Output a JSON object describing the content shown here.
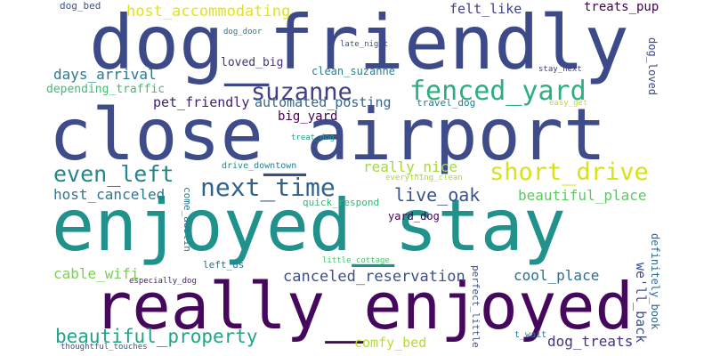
{
  "words": [
    {
      "text": "dog_friendly",
      "color": "#3d4a8a"
    },
    {
      "text": "close_airport",
      "color": "#3e4c8a"
    },
    {
      "text": "enjoyed_stay",
      "color": "#21918c"
    },
    {
      "text": "really_enjoyed",
      "color": "#46085c"
    },
    {
      "text": "suzanne",
      "color": "#433e85"
    },
    {
      "text": "fenced_yard",
      "color": "#2ab07f"
    },
    {
      "text": "next_time",
      "color": "#33638d"
    },
    {
      "text": "short_drive",
      "color": "#d8e219"
    },
    {
      "text": "even_left",
      "color": "#25858e"
    },
    {
      "text": "live_oak",
      "color": "#3b528b"
    },
    {
      "text": "beautiful_property",
      "color": "#20a386"
    },
    {
      "text": "canceled_reservation",
      "color": "#3b518b"
    },
    {
      "text": "host_accommodating",
      "color": "#e3e418"
    },
    {
      "text": "days_arrival",
      "color": "#2a788e"
    },
    {
      "text": "pet_friendly",
      "color": "#3f1f6f"
    },
    {
      "text": "automated_posting",
      "color": "#31688e"
    },
    {
      "text": "really_nice",
      "color": "#a2da37"
    },
    {
      "text": "beautiful_place",
      "color": "#5ec962"
    },
    {
      "text": "host_canceled",
      "color": "#2a788e"
    },
    {
      "text": "cool_place",
      "color": "#2e6e8e"
    },
    {
      "text": "cable_wifi",
      "color": "#7ad151"
    },
    {
      "text": "comfy_bed",
      "color": "#b5de2b"
    },
    {
      "text": "dog_treats",
      "color": "#46337e"
    },
    {
      "text": "felt_like",
      "color": "#424086"
    },
    {
      "text": "treats_pup",
      "color": "#440154"
    },
    {
      "text": "loved_big",
      "color": "#46327e"
    },
    {
      "text": "clean_suzanne",
      "color": "#26828e"
    },
    {
      "text": "depending_traffic",
      "color": "#3dbc74"
    },
    {
      "text": "big_yard",
      "color": "#440154"
    },
    {
      "text": "travel_dog",
      "color": "#287c8e"
    },
    {
      "text": "yard_dog",
      "color": "#440154"
    },
    {
      "text": "dog_bed",
      "color": "#3b528b"
    },
    {
      "text": "dog_door",
      "color": "#2c728e"
    },
    {
      "text": "late_night",
      "color": "#3b528b"
    },
    {
      "text": "stay_next",
      "color": "#443983"
    },
    {
      "text": "easy_get",
      "color": "#c2df23"
    },
    {
      "text": "treat_dog",
      "color": "#1f9e89"
    },
    {
      "text": "drive_downtown",
      "color": "#25848e"
    },
    {
      "text": "everything_clean",
      "color": "#a5db36"
    },
    {
      "text": "quick_respond",
      "color": "#35b779"
    },
    {
      "text": "left_us",
      "color": "#2d708e"
    },
    {
      "text": "little_cottage",
      "color": "#4ac16d"
    },
    {
      "text": "especially_dog",
      "color": "#481d6f"
    },
    {
      "text": "t_wait",
      "color": "#2a788e"
    },
    {
      "text": "thoughtful_touches",
      "color": "#3b528b"
    },
    {
      "text": "come_austin",
      "color": "#287c8e"
    },
    {
      "text": "we'll_back",
      "color": "#3e4c8a"
    },
    {
      "text": "definitely_book",
      "color": "#31688e"
    },
    {
      "text": "perfect_little",
      "color": "#3b518b"
    },
    {
      "text": "dog_loved",
      "color": "#3f4889"
    }
  ]
}
